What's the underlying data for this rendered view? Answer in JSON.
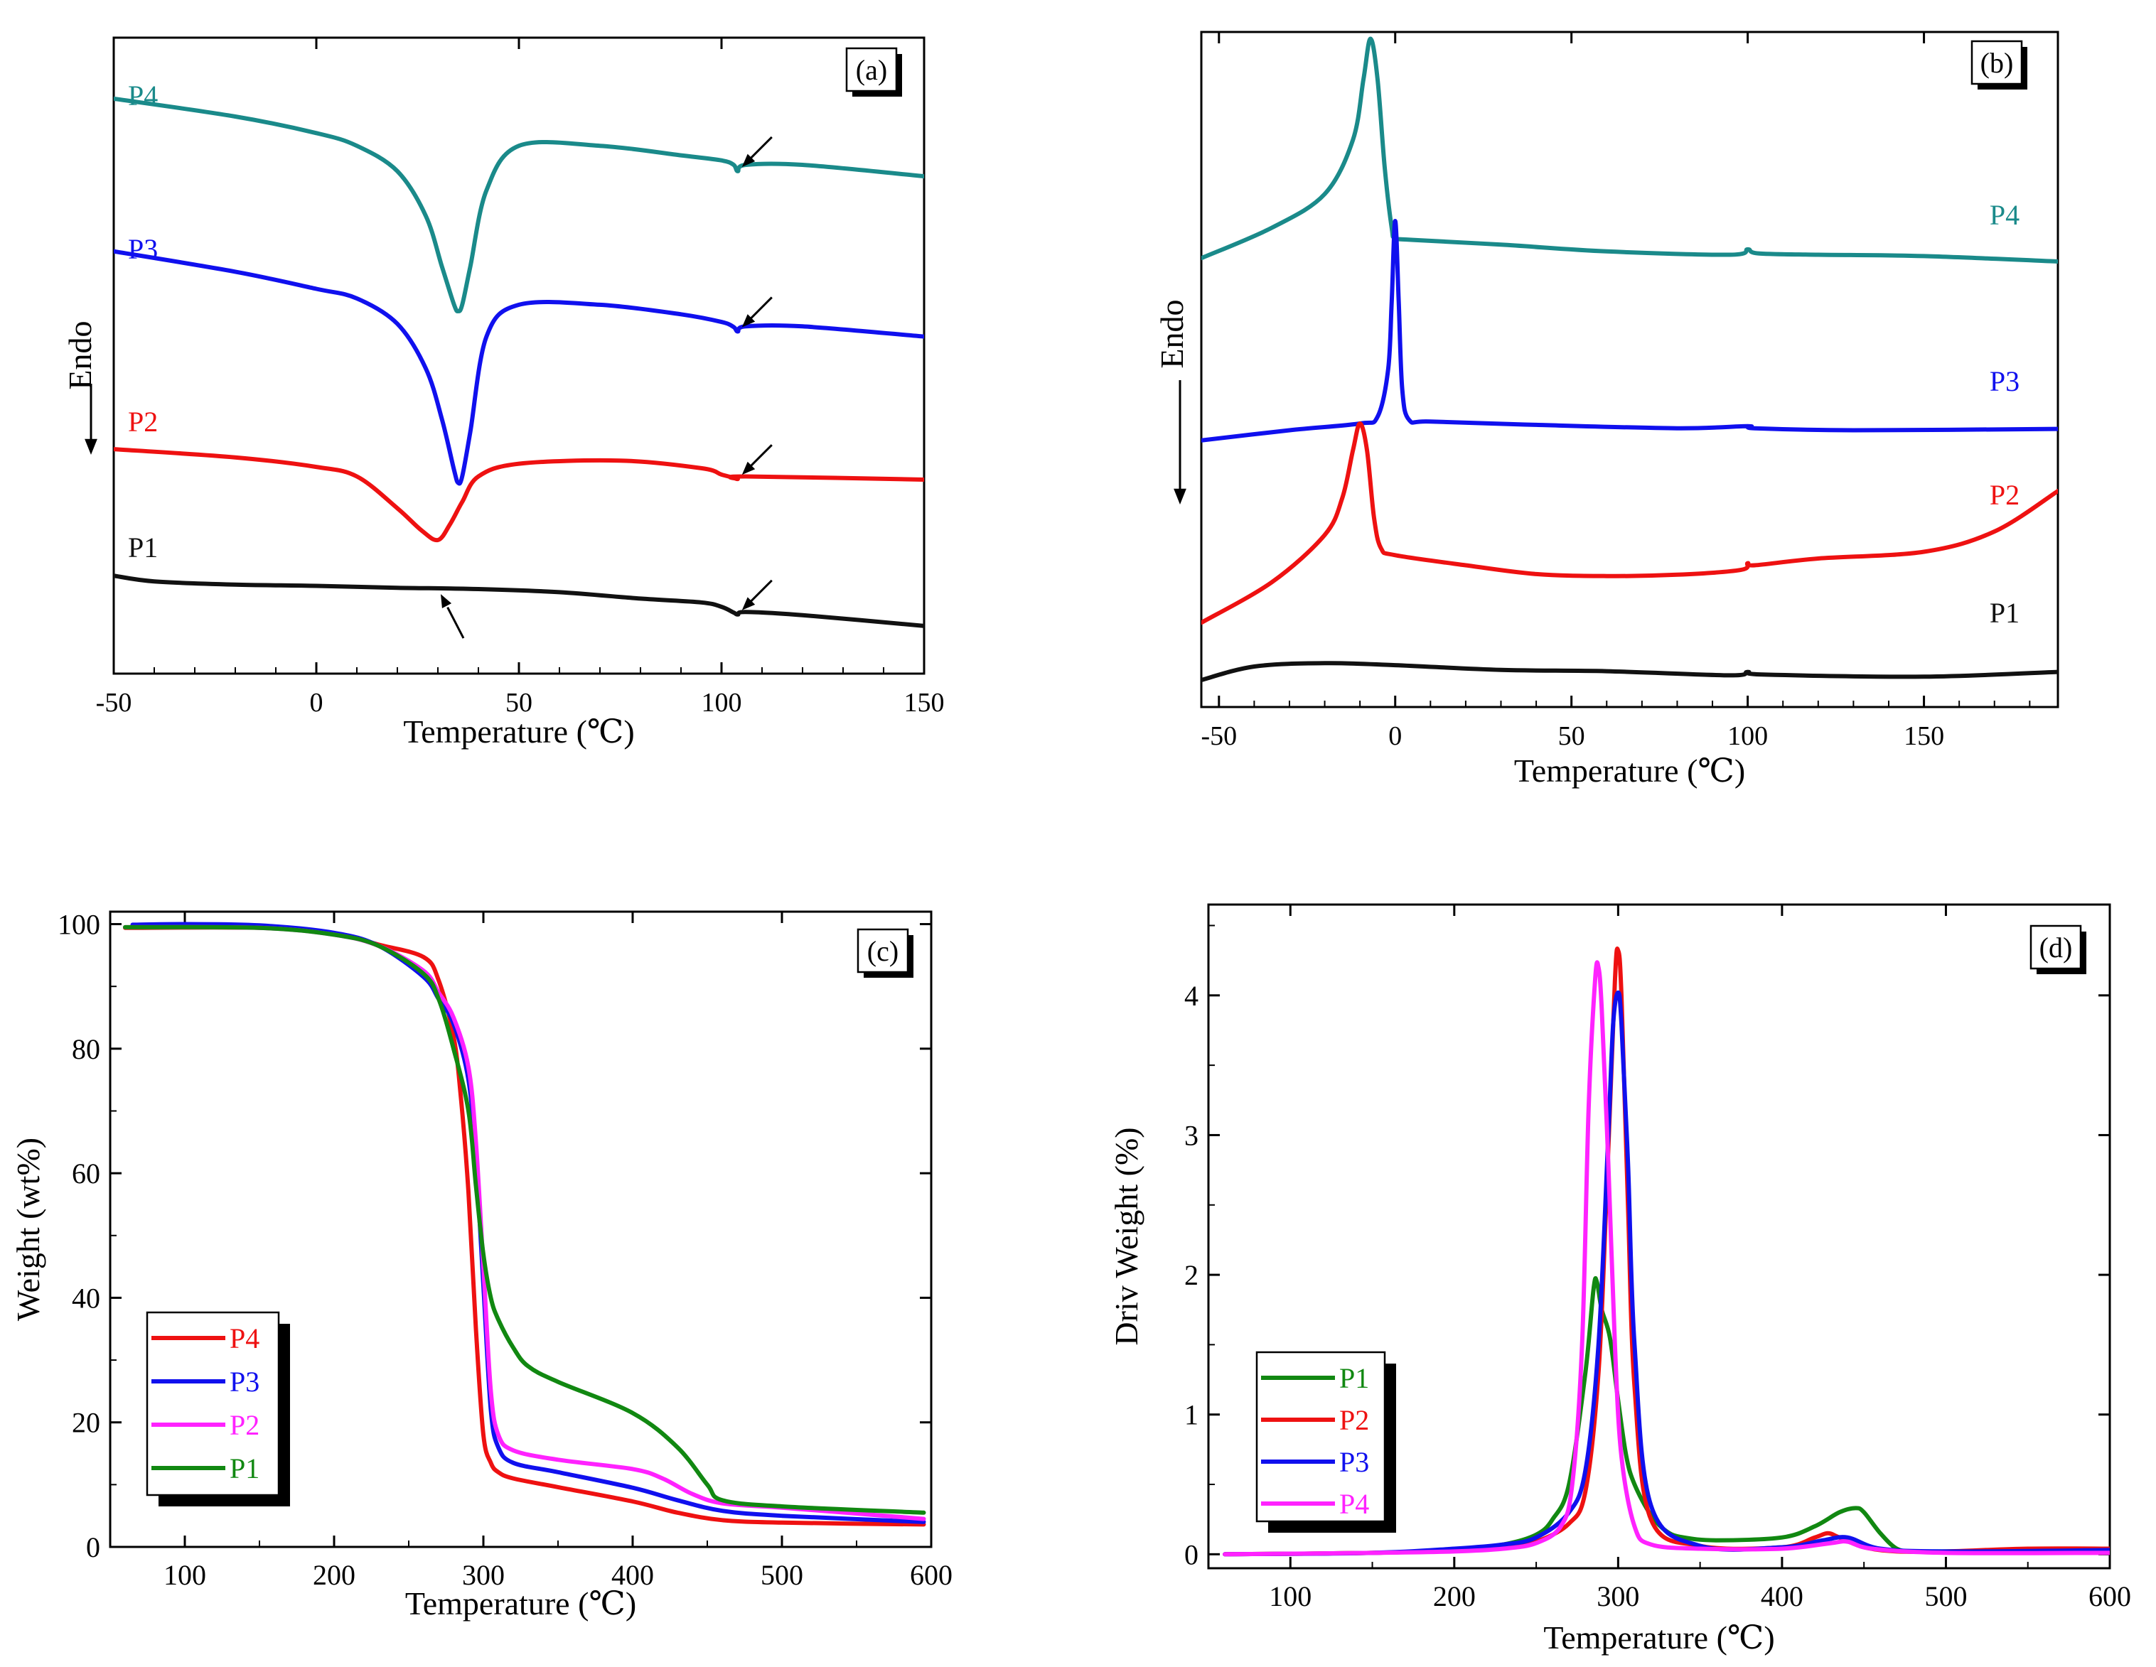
{
  "chart_data": [
    {
      "panel": "(a)",
      "type": "line",
      "title": "",
      "xlabel": "Temperature (℃)",
      "ylabel": "Endo",
      "xlim": [
        -50,
        150
      ],
      "xticks": [
        -50,
        0,
        50,
        100,
        150
      ],
      "y_axis": "offset curves, no numeric scale",
      "ylim": [
        0,
        1
      ],
      "arrow_annotations": [
        {
          "x": 104,
          "series": "P4"
        },
        {
          "x": 104,
          "series": "P3"
        },
        {
          "x": 104,
          "series": "P2"
        },
        {
          "x": 104,
          "series": "P1"
        },
        {
          "x": 30,
          "series": "P1"
        }
      ],
      "series": [
        {
          "name": "P4",
          "color": "#1a8a8a",
          "x": [
            -50,
            -20,
            0,
            10,
            20,
            27,
            31,
            34,
            35,
            36,
            38,
            42,
            50,
            70,
            90,
            100,
            103,
            104,
            106,
            120,
            150
          ],
          "y": [
            0.904,
            0.876,
            0.85,
            0.83,
            0.79,
            0.72,
            0.64,
            0.58,
            0.57,
            0.58,
            0.64,
            0.76,
            0.83,
            0.83,
            0.815,
            0.807,
            0.8,
            0.79,
            0.8,
            0.8,
            0.782
          ]
        },
        {
          "name": "P3",
          "color": "#1010ee",
          "x": [
            -50,
            -20,
            0,
            10,
            20,
            27,
            31,
            34,
            35,
            36,
            38,
            42,
            50,
            70,
            90,
            100,
            103,
            104,
            106,
            120,
            150
          ],
          "y": [
            0.664,
            0.632,
            0.605,
            0.59,
            0.55,
            0.48,
            0.4,
            0.32,
            0.3,
            0.31,
            0.38,
            0.53,
            0.58,
            0.58,
            0.565,
            0.553,
            0.545,
            0.538,
            0.546,
            0.546,
            0.53
          ]
        },
        {
          "name": "P2",
          "color": "#ee1111",
          "x": [
            -50,
            -20,
            0,
            10,
            20,
            26,
            30,
            33,
            36,
            40,
            50,
            75,
            95,
            100,
            103,
            104,
            106,
            150
          ],
          "y": [
            0.353,
            0.34,
            0.325,
            0.31,
            0.26,
            0.225,
            0.21,
            0.235,
            0.27,
            0.31,
            0.33,
            0.335,
            0.323,
            0.313,
            0.308,
            0.306,
            0.31,
            0.305
          ]
        },
        {
          "name": "P1",
          "color": "#111111",
          "x": [
            -50,
            -40,
            -20,
            0,
            20,
            40,
            60,
            80,
            95,
            100,
            103,
            104,
            106,
            120,
            150
          ],
          "y": [
            0.154,
            0.145,
            0.14,
            0.138,
            0.135,
            0.133,
            0.128,
            0.118,
            0.112,
            0.105,
            0.096,
            0.093,
            0.097,
            0.092,
            0.075
          ]
        }
      ]
    },
    {
      "panel": "(b)",
      "type": "line",
      "title": "",
      "xlabel": "Temperature (℃)",
      "ylabel": "Endo",
      "xlim": [
        -55,
        188
      ],
      "xticks": [
        -50,
        0,
        50,
        100,
        150
      ],
      "y_axis": "offset curves, no numeric scale",
      "ylim": [
        0,
        1
      ],
      "series": [
        {
          "name": "P4",
          "color": "#1a8a8a",
          "x": [
            -55,
            -35,
            -20,
            -12,
            -9,
            -7,
            -5,
            -3,
            -1,
            0,
            5,
            30,
            60,
            95,
            100,
            103,
            120,
            150,
            188
          ],
          "y": [
            0.665,
            0.71,
            0.76,
            0.84,
            0.93,
            0.99,
            0.93,
            0.8,
            0.71,
            0.695,
            0.692,
            0.685,
            0.675,
            0.67,
            0.678,
            0.672,
            0.67,
            0.668,
            0.66
          ]
        },
        {
          "name": "P3",
          "color": "#1010ee",
          "x": [
            -55,
            -30,
            -10,
            -5,
            -2,
            -1,
            0,
            1,
            2,
            4,
            10,
            40,
            80,
            100,
            102,
            130,
            188
          ],
          "y": [
            0.395,
            0.41,
            0.42,
            0.43,
            0.5,
            0.6,
            0.72,
            0.6,
            0.47,
            0.425,
            0.423,
            0.418,
            0.413,
            0.416,
            0.413,
            0.41,
            0.412
          ]
        },
        {
          "name": "P2",
          "color": "#ee1111",
          "x": [
            -55,
            -35,
            -20,
            -15,
            -12,
            -10,
            -8,
            -6,
            -4,
            0,
            20,
            40,
            60,
            80,
            98,
            100,
            102,
            120,
            150,
            170,
            188
          ],
          "y": [
            0.125,
            0.185,
            0.255,
            0.31,
            0.38,
            0.42,
            0.38,
            0.28,
            0.235,
            0.225,
            0.21,
            0.197,
            0.194,
            0.196,
            0.203,
            0.213,
            0.21,
            0.22,
            0.23,
            0.26,
            0.32
          ]
        },
        {
          "name": "P1",
          "color": "#111111",
          "x": [
            -55,
            -40,
            -20,
            0,
            30,
            60,
            95,
            100,
            105,
            150,
            188
          ],
          "y": [
            0.04,
            0.06,
            0.065,
            0.062,
            0.055,
            0.053,
            0.047,
            0.052,
            0.048,
            0.045,
            0.052
          ]
        }
      ]
    },
    {
      "panel": "(c)",
      "type": "line",
      "title": "",
      "xlabel": "Temperature (℃)",
      "ylabel": "Weight (wt%)",
      "xlim": [
        50,
        600
      ],
      "ylim": [
        0,
        102
      ],
      "xticks": [
        100,
        200,
        300,
        400,
        500,
        600
      ],
      "yticks": [
        0,
        20,
        40,
        60,
        80,
        100
      ],
      "legend": "lower-left",
      "series": [
        {
          "name": "P4",
          "color": "#ee1111",
          "x": [
            60,
            150,
            200,
            230,
            260,
            270,
            280,
            285,
            290,
            295,
            300,
            305,
            310,
            320,
            350,
            400,
            430,
            460,
            500,
            595
          ],
          "y": [
            99.4,
            99.4,
            98.5,
            96.7,
            94.7,
            91,
            82,
            72,
            57,
            35,
            18,
            13.5,
            12,
            11,
            9.6,
            7.3,
            5.5,
            4.3,
            3.9,
            3.6
          ]
        },
        {
          "name": "P3",
          "color": "#1010ee",
          "x": [
            65,
            100,
            150,
            200,
            230,
            260,
            270,
            280,
            290,
            295,
            300,
            305,
            310,
            320,
            350,
            400,
            430,
            460,
            500,
            595
          ],
          "y": [
            99.9,
            100,
            99.8,
            98.6,
            96.5,
            91.5,
            88,
            84,
            75,
            62,
            42,
            22,
            16,
            13.5,
            12,
            9.5,
            7.5,
            5.8,
            5,
            4
          ]
        },
        {
          "name": "P2",
          "color": "#ff22ff",
          "x": [
            60,
            150,
            200,
            230,
            260,
            270,
            280,
            290,
            295,
            300,
            305,
            310,
            320,
            350,
            400,
            420,
            440,
            460,
            500,
            595
          ],
          "y": [
            99.5,
            99.4,
            98.3,
            96.5,
            92.5,
            89,
            85,
            77,
            65,
            45,
            25,
            18,
            15.5,
            14,
            12.5,
            11,
            8.5,
            7,
            6.3,
            4.5
          ]
        },
        {
          "name": "P1",
          "color": "#118811",
          "x": [
            60,
            150,
            200,
            230,
            260,
            270,
            280,
            290,
            295,
            300,
            305,
            310,
            320,
            330,
            350,
            400,
            430,
            450,
            460,
            500,
            595
          ],
          "y": [
            99.5,
            99.4,
            98.3,
            96.5,
            92,
            88,
            80,
            70,
            58,
            47,
            40,
            36.5,
            32,
            29,
            26.5,
            21.5,
            16,
            10,
            7.5,
            6.5,
            5.5
          ]
        }
      ]
    },
    {
      "panel": "(d)",
      "type": "line",
      "title": "",
      "xlabel": "Temperature (℃)",
      "ylabel": "Driv Weight (%)",
      "xlim": [
        50,
        600
      ],
      "ylim": [
        -0.1,
        4.65
      ],
      "xticks": [
        100,
        200,
        300,
        400,
        500,
        600
      ],
      "yticks": [
        0,
        1,
        2,
        3,
        4
      ],
      "legend": "lower-left",
      "series": [
        {
          "name": "P1",
          "color": "#118811",
          "x": [
            60,
            150,
            200,
            230,
            250,
            260,
            270,
            280,
            285,
            287,
            290,
            295,
            300,
            305,
            310,
            320,
            330,
            340,
            360,
            400,
            420,
            435,
            445,
            450,
            460,
            470,
            480,
            500,
            600
          ],
          "y": [
            0,
            0.01,
            0.03,
            0.07,
            0.14,
            0.25,
            0.5,
            1.3,
            1.9,
            1.95,
            1.75,
            1.55,
            1.1,
            0.7,
            0.5,
            0.28,
            0.16,
            0.12,
            0.1,
            0.12,
            0.2,
            0.3,
            0.33,
            0.3,
            0.15,
            0.04,
            0.02,
            0.02,
            0.02
          ]
        },
        {
          "name": "P2",
          "color": "#ee1111",
          "x": [
            60,
            150,
            200,
            230,
            250,
            270,
            280,
            288,
            293,
            298,
            300,
            302,
            306,
            310,
            320,
            350,
            400,
            420,
            428,
            435,
            450,
            470,
            500,
            550,
            600
          ],
          "y": [
            0,
            0.01,
            0.03,
            0.05,
            0.09,
            0.22,
            0.45,
            1.3,
            2.6,
            4.1,
            4.32,
            4.0,
            2.5,
            1.2,
            0.25,
            0.06,
            0.05,
            0.12,
            0.15,
            0.12,
            0.05,
            0.02,
            0.02,
            0.04,
            0.04
          ]
        },
        {
          "name": "P3",
          "color": "#1010ee",
          "x": [
            60,
            150,
            200,
            230,
            250,
            270,
            280,
            288,
            294,
            297,
            300,
            302,
            306,
            310,
            320,
            350,
            400,
            425,
            440,
            460,
            500,
            600
          ],
          "y": [
            0,
            0.01,
            0.04,
            0.07,
            0.12,
            0.3,
            0.6,
            1.5,
            3.0,
            3.8,
            4.02,
            3.8,
            2.8,
            1.5,
            0.35,
            0.06,
            0.05,
            0.1,
            0.12,
            0.04,
            0.02,
            0.03
          ]
        },
        {
          "name": "P4",
          "color": "#ff22ff",
          "x": [
            60,
            150,
            200,
            230,
            250,
            265,
            272,
            278,
            282,
            286,
            288,
            290,
            294,
            298,
            302,
            310,
            320,
            350,
            400,
            430,
            440,
            455,
            500,
            600
          ],
          "y": [
            0,
            0.01,
            0.02,
            0.04,
            0.08,
            0.2,
            0.5,
            1.5,
            3.2,
            4.12,
            4.2,
            3.9,
            2.8,
            1.5,
            0.7,
            0.2,
            0.07,
            0.04,
            0.04,
            0.08,
            0.09,
            0.04,
            0.01,
            0.01
          ]
        }
      ]
    }
  ]
}
